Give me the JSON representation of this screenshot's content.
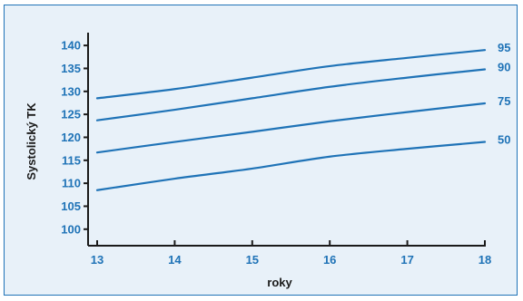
{
  "chart_data": {
    "type": "line",
    "xlabel": "roky",
    "ylabel": "Systolický TK",
    "x": [
      13,
      14,
      15,
      16,
      17,
      18
    ],
    "xlim": [
      13,
      18
    ],
    "ylim": [
      97,
      142
    ],
    "x_ticks": [
      "13",
      "14",
      "15",
      "16",
      "17",
      "18"
    ],
    "y_ticks": [
      "100",
      "105",
      "110",
      "115",
      "120",
      "125",
      "130",
      "135",
      "140"
    ],
    "y_tick_values": [
      100,
      105,
      110,
      115,
      120,
      125,
      130,
      135,
      140
    ],
    "grid": false,
    "series": [
      {
        "name": "95",
        "values": [
          128.5,
          130.5,
          133.0,
          135.5,
          137.3,
          139.0
        ]
      },
      {
        "name": "90",
        "values": [
          123.7,
          126.0,
          128.5,
          131.0,
          133.0,
          134.8
        ]
      },
      {
        "name": "75",
        "values": [
          116.7,
          119.0,
          121.2,
          123.5,
          125.5,
          127.4
        ]
      },
      {
        "name": "50",
        "values": [
          108.5,
          111.0,
          113.2,
          115.8,
          117.5,
          119.0
        ]
      }
    ]
  },
  "colors": {
    "line": "#1f73b7",
    "tick_text": "#1f73b7",
    "axis": "#1a1a1a",
    "background": "#e8f1f9",
    "border": "#1f73b7"
  }
}
